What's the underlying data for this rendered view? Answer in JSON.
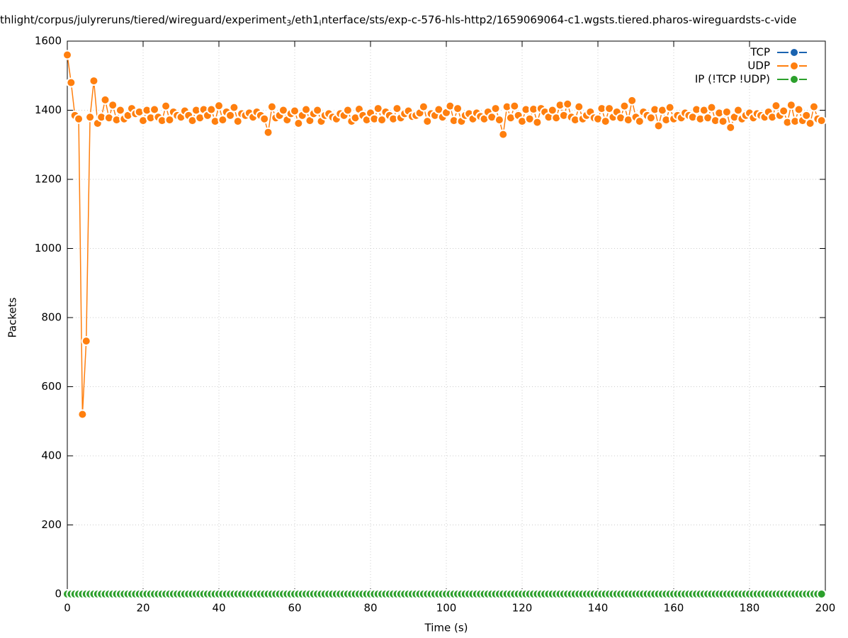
{
  "chart_data": {
    "type": "line",
    "title": [
      "thlight/corpus/julyreruns/tiered/wireguard/experiment",
      "3",
      "/eth1",
      "i",
      "nterface/sts/exp-c-576-hls-http2/1659069064-c1.wgsts.tiered.pharos-wireguardsts-c-vide"
    ],
    "x_label": "Time (s)",
    "y_label": "Packets",
    "x": [
      0,
      1,
      2,
      3,
      4,
      5,
      6,
      7,
      8,
      9,
      10,
      11,
      12,
      13,
      14,
      15,
      16,
      17,
      18,
      19,
      20,
      21,
      22,
      23,
      24,
      25,
      26,
      27,
      28,
      29,
      30,
      31,
      32,
      33,
      34,
      35,
      36,
      37,
      38,
      39,
      40,
      41,
      42,
      43,
      44,
      45,
      46,
      47,
      48,
      49,
      50,
      51,
      52,
      53,
      54,
      55,
      56,
      57,
      58,
      59,
      60,
      61,
      62,
      63,
      64,
      65,
      66,
      67,
      68,
      69,
      70,
      71,
      72,
      73,
      74,
      75,
      76,
      77,
      78,
      79,
      80,
      81,
      82,
      83,
      84,
      85,
      86,
      87,
      88,
      89,
      90,
      91,
      92,
      93,
      94,
      95,
      96,
      97,
      98,
      99,
      100,
      101,
      102,
      103,
      104,
      105,
      106,
      107,
      108,
      109,
      110,
      111,
      112,
      113,
      114,
      115,
      116,
      117,
      118,
      119,
      120,
      121,
      122,
      123,
      124,
      125,
      126,
      127,
      128,
      129,
      130,
      131,
      132,
      133,
      134,
      135,
      136,
      137,
      138,
      139,
      140,
      141,
      142,
      143,
      144,
      145,
      146,
      147,
      148,
      149,
      150,
      151,
      152,
      153,
      154,
      155,
      156,
      157,
      158,
      159,
      160,
      161,
      162,
      163,
      164,
      165,
      166,
      167,
      168,
      169,
      170,
      171,
      172,
      173,
      174,
      175,
      176,
      177,
      178,
      179,
      180,
      181,
      182,
      183,
      184,
      185,
      186,
      187,
      188,
      189,
      190,
      191,
      192,
      193,
      194,
      195,
      196,
      197,
      198,
      199
    ],
    "series": [
      {
        "name": "TCP",
        "color": "#1a63b0",
        "values": [
          0,
          0,
          0,
          0,
          0,
          0,
          0,
          0,
          0,
          0,
          0,
          0,
          0,
          0,
          0,
          0,
          0,
          0,
          0,
          0,
          0,
          0,
          0,
          0,
          0,
          0,
          0,
          0,
          0,
          0,
          0,
          0,
          0,
          0,
          0,
          0,
          0,
          0,
          0,
          0,
          0,
          0,
          0,
          0,
          0,
          0,
          0,
          0,
          0,
          0,
          0,
          0,
          0,
          0,
          0,
          0,
          0,
          0,
          0,
          0,
          0,
          0,
          0,
          0,
          0,
          0,
          0,
          0,
          0,
          0,
          0,
          0,
          0,
          0,
          0,
          0,
          0,
          0,
          0,
          0,
          0,
          0,
          0,
          0,
          0,
          0,
          0,
          0,
          0,
          0,
          0,
          0,
          0,
          0,
          0,
          0,
          0,
          0,
          0,
          0,
          0,
          0,
          0,
          0,
          0,
          0,
          0,
          0,
          0,
          0,
          0,
          0,
          0,
          0,
          0,
          0,
          0,
          0,
          0,
          0,
          0,
          0,
          0,
          0,
          0,
          0,
          0,
          0,
          0,
          0,
          0,
          0,
          0,
          0,
          0,
          0,
          0,
          0,
          0,
          0,
          0,
          0,
          0,
          0,
          0,
          0,
          0,
          0,
          0,
          0,
          0,
          0,
          0,
          0,
          0,
          0,
          0,
          0,
          0,
          0,
          0,
          0,
          0,
          0,
          0,
          0,
          0,
          0,
          0,
          0,
          0,
          0,
          0,
          0,
          0,
          0,
          0,
          0,
          0,
          0,
          0,
          0,
          0,
          0,
          0,
          0,
          0,
          0,
          0,
          0,
          0,
          0,
          0,
          0,
          0,
          0,
          0,
          0,
          0,
          0
        ]
      },
      {
        "name": "UDP",
        "color": "#ff7f0e",
        "values": [
          1560,
          1480,
          1385,
          1375,
          520,
          732,
          1380,
          1485,
          1362,
          1380,
          1430,
          1378,
          1415,
          1372,
          1400,
          1375,
          1385,
          1405,
          1390,
          1395,
          1370,
          1400,
          1378,
          1402,
          1380,
          1370,
          1412,
          1372,
          1395,
          1385,
          1380,
          1398,
          1385,
          1370,
          1400,
          1378,
          1402,
          1385,
          1402,
          1368,
          1413,
          1372,
          1395,
          1385,
          1408,
          1368,
          1390,
          1385,
          1392,
          1380,
          1395,
          1385,
          1375,
          1336,
          1410,
          1378,
          1385,
          1400,
          1372,
          1390,
          1398,
          1362,
          1385,
          1402,
          1370,
          1390,
          1400,
          1368,
          1385,
          1390,
          1380,
          1375,
          1390,
          1385,
          1400,
          1368,
          1378,
          1403,
          1385,
          1372,
          1392,
          1375,
          1405,
          1372,
          1395,
          1385,
          1375,
          1405,
          1378,
          1390,
          1398,
          1382,
          1385,
          1392,
          1410,
          1368,
          1390,
          1385,
          1402,
          1380,
          1393,
          1412,
          1370,
          1405,
          1368,
          1385,
          1390,
          1375,
          1392,
          1382,
          1375,
          1395,
          1380,
          1405,
          1372,
          1330,
          1410,
          1378,
          1412,
          1385,
          1368,
          1402,
          1375,
          1403,
          1365,
          1405,
          1395,
          1380,
          1400,
          1378,
          1415,
          1385,
          1418,
          1380,
          1372,
          1410,
          1375,
          1385,
          1395,
          1378,
          1375,
          1405,
          1368,
          1405,
          1380,
          1395,
          1378,
          1412,
          1372,
          1428,
          1380,
          1368,
          1395,
          1385,
          1378,
          1402,
          1355,
          1400,
          1372,
          1408,
          1375,
          1385,
          1378,
          1392,
          1385,
          1380,
          1402,
          1375,
          1400,
          1378,
          1408,
          1370,
          1392,
          1368,
          1395,
          1350,
          1380,
          1400,
          1375,
          1385,
          1392,
          1378,
          1390,
          1385,
          1380,
          1395,
          1380,
          1413,
          1385,
          1398,
          1365,
          1415,
          1368,
          1402,
          1370,
          1385,
          1362,
          1410,
          1375,
          1370
        ]
      },
      {
        "name": "IP (!TCP  !UDP)",
        "color": "#2ca02c",
        "values": [
          0,
          0,
          0,
          0,
          0,
          0,
          0,
          0,
          0,
          0,
          0,
          0,
          0,
          0,
          0,
          0,
          0,
          0,
          0,
          0,
          0,
          0,
          0,
          0,
          0,
          0,
          0,
          0,
          0,
          0,
          0,
          0,
          0,
          0,
          0,
          0,
          0,
          0,
          0,
          0,
          0,
          0,
          0,
          0,
          0,
          0,
          0,
          0,
          0,
          0,
          0,
          0,
          0,
          0,
          0,
          0,
          0,
          0,
          0,
          0,
          0,
          0,
          0,
          0,
          0,
          0,
          0,
          0,
          0,
          0,
          0,
          0,
          0,
          0,
          0,
          0,
          0,
          0,
          0,
          0,
          0,
          0,
          0,
          0,
          0,
          0,
          0,
          0,
          0,
          0,
          0,
          0,
          0,
          0,
          0,
          0,
          0,
          0,
          0,
          0,
          0,
          0,
          0,
          0,
          0,
          0,
          0,
          0,
          0,
          0,
          0,
          0,
          0,
          0,
          0,
          0,
          0,
          0,
          0,
          0,
          0,
          0,
          0,
          0,
          0,
          0,
          0,
          0,
          0,
          0,
          0,
          0,
          0,
          0,
          0,
          0,
          0,
          0,
          0,
          0,
          0,
          0,
          0,
          0,
          0,
          0,
          0,
          0,
          0,
          0,
          0,
          0,
          0,
          0,
          0,
          0,
          0,
          0,
          0,
          0,
          0,
          0,
          0,
          0,
          0,
          0,
          0,
          0,
          0,
          0,
          0,
          0,
          0,
          0,
          0,
          0,
          0,
          0,
          0,
          0,
          0,
          0,
          0,
          0,
          0,
          0,
          0,
          0,
          0,
          0,
          0,
          0,
          0,
          0,
          0,
          0,
          0,
          0,
          0,
          0
        ]
      }
    ],
    "xlim": [
      0,
      200
    ],
    "xticks": [
      0,
      20,
      40,
      60,
      80,
      100,
      120,
      140,
      160,
      180,
      200
    ],
    "ylim": [
      0,
      1600
    ],
    "yticks": [
      0,
      200,
      400,
      600,
      800,
      1000,
      1200,
      1400,
      1600
    ],
    "grid": true,
    "legend": "top-right"
  }
}
